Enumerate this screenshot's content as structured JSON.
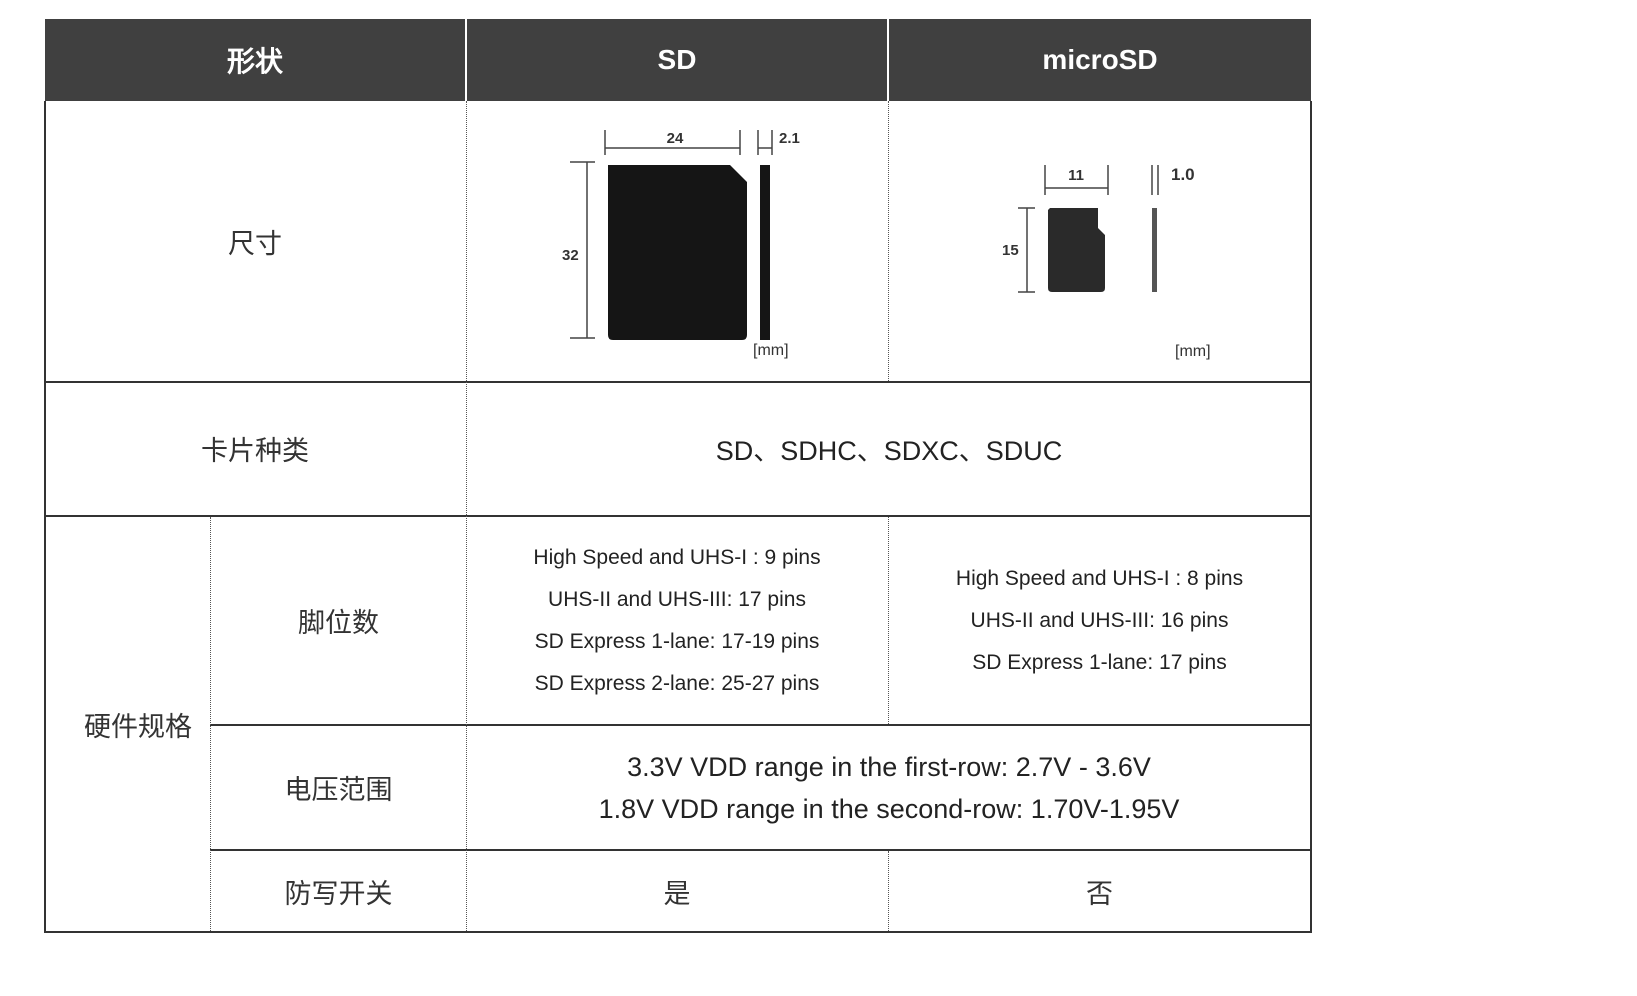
{
  "header": {
    "col1": "形状",
    "col2": "SD",
    "col3": "microSD"
  },
  "rows": {
    "size": {
      "label": "尺寸",
      "sd": {
        "width": "24",
        "height": "32",
        "thickness": "2.1",
        "unit": "[mm]"
      },
      "microsd": {
        "width": "11",
        "height": "15",
        "thickness": "1.0",
        "unit": "[mm]"
      }
    },
    "card_type": {
      "label": "卡片种类",
      "value": "SD、SDHC、SDXC、SDUC"
    },
    "hardware": {
      "label": "硬件规格",
      "pins": {
        "label": "脚位数",
        "sd": [
          "High Speed and UHS-I : 9 pins",
          "UHS-II and UHS-III: 17 pins",
          "SD Express 1-lane: 17-19 pins",
          "SD Express 2-lane: 25-27 pins"
        ],
        "microsd": [
          "High Speed and UHS-I : 8 pins",
          "UHS-II and UHS-III: 16 pins",
          "SD Express 1-lane: 17 pins"
        ]
      },
      "voltage": {
        "label": "电压范围",
        "lines": [
          "3.3V VDD range in the first-row: 2.7V - 3.6V",
          "1.8V VDD range in the second-row: 1.70V-1.95V"
        ]
      },
      "write_protect": {
        "label": "防写开关",
        "sd": "是",
        "microsd": "否"
      }
    }
  }
}
